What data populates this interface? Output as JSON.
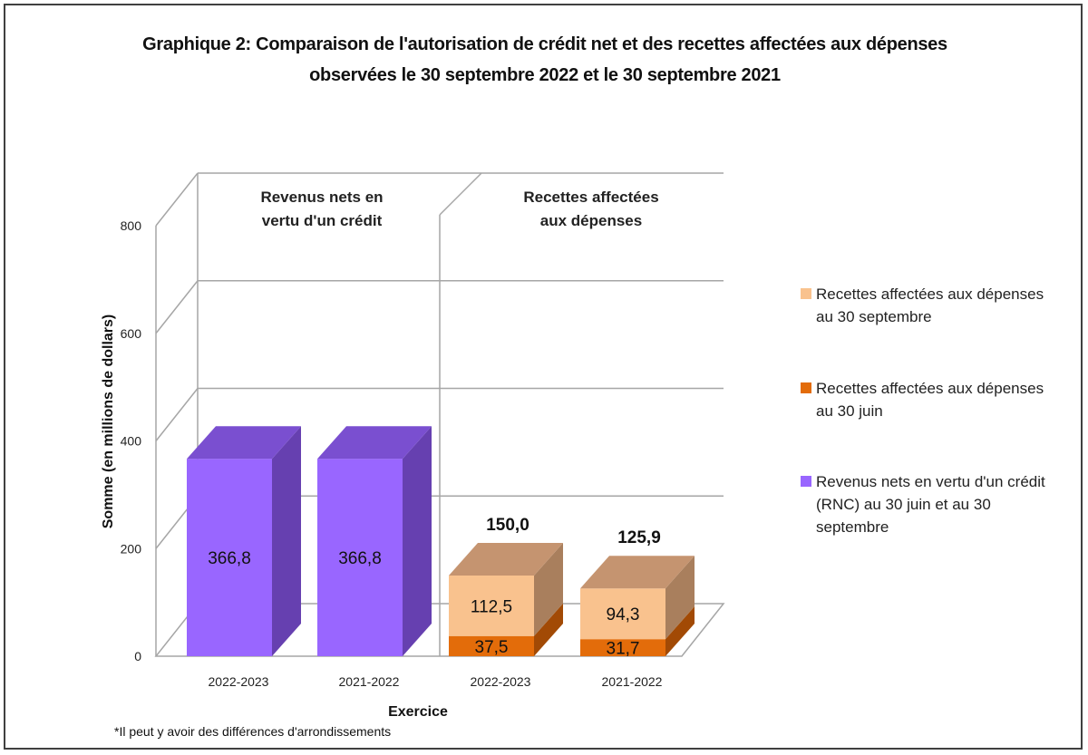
{
  "title": {
    "line1": "Graphique 2: Comparaison de l'autorisation de crédit net et des recettes affectées aux dépenses",
    "line2": "observées le 30 septembre 2022 et le 30 septembre 2021"
  },
  "chart_data": {
    "type": "bar",
    "stacked": true,
    "three_d": true,
    "xlabel": "Exercice",
    "ylabel": "Somme (en millions de dollars)",
    "ylim": [
      0,
      800
    ],
    "yticks": [
      "0",
      "200",
      "400",
      "600",
      "800"
    ],
    "grid": true,
    "legend_position": "right",
    "panels": [
      {
        "label_line1": "Revenus nets en",
        "label_line2": "vertu d'un crédit",
        "bars": [
          {
            "category": "2022-2023",
            "segments": [
              {
                "series": "rnc",
                "value": 366.8,
                "label": "366,8"
              }
            ]
          },
          {
            "category": "2021-2022",
            "segments": [
              {
                "series": "rnc",
                "value": 366.8,
                "label": "366,8"
              }
            ]
          }
        ]
      },
      {
        "label_line1": "Recettes affectées",
        "label_line2": "aux dépenses",
        "bars": [
          {
            "category": "2022-2023",
            "total_label": "150,0",
            "segments": [
              {
                "series": "juin",
                "value": 37.5,
                "label": "37,5"
              },
              {
                "series": "sept",
                "value": 112.5,
                "label": "112,5"
              }
            ]
          },
          {
            "category": "2021-2022",
            "total_label": "125,9",
            "segments": [
              {
                "series": "juin",
                "value": 31.7,
                "label": "31,7"
              },
              {
                "series": "sept",
                "value": 94.3,
                "label": "94,3"
              }
            ]
          }
        ]
      }
    ],
    "series": [
      {
        "key": "sept",
        "name_lines": [
          "Recettes affectées aux dépenses",
          "au 30 septembre"
        ],
        "color": "#F9C28E",
        "side": "#A97F5D",
        "top": "#C59470"
      },
      {
        "key": "juin",
        "name_lines": [
          "Recettes affectées aux dépenses",
          "au 30 juin"
        ],
        "color": "#E36C0A",
        "side": "#A24A05",
        "top": "#B85806"
      },
      {
        "key": "rnc",
        "name_lines": [
          "Revenus nets en vertu d'un crédit",
          "(RNC) au 30 juin et au 30",
          "septembre"
        ],
        "color": "#9966FF",
        "side": "#6640B0",
        "top": "#7A4FD0"
      }
    ]
  },
  "footnote": "*Il peut y avoir des différences d'arrondissements"
}
